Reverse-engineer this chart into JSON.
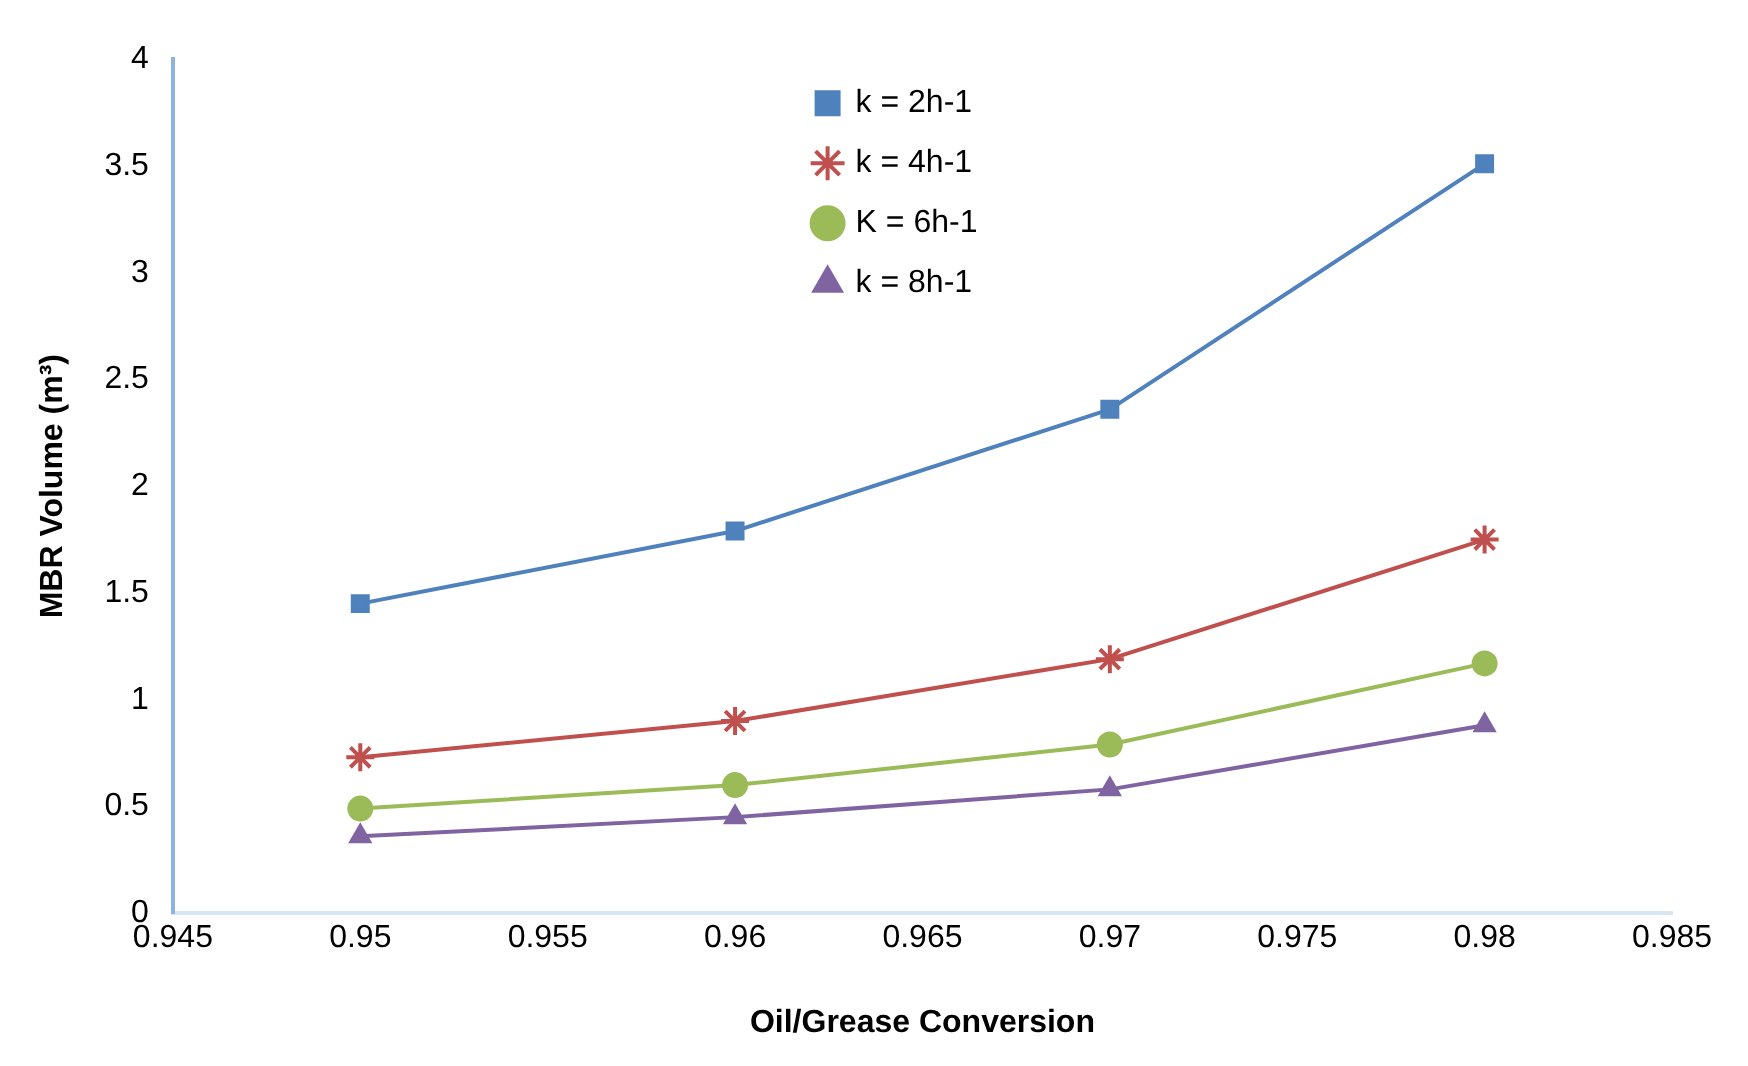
{
  "chart_data": {
    "type": "line",
    "xlabel": "Oil/Grease Conversion",
    "ylabel": "MBR Volume (m³)",
    "x": [
      0.95,
      0.96,
      0.97,
      0.98
    ],
    "series": [
      {
        "name": "k = 2h-1",
        "color": "#4f81bd",
        "marker": "square",
        "values": [
          1.45,
          1.79,
          2.36,
          3.51
        ]
      },
      {
        "name": "k = 4h-1",
        "color": "#c0504d",
        "marker": "cross",
        "values": [
          0.73,
          0.9,
          1.19,
          1.75
        ]
      },
      {
        "name": "K = 6h-1",
        "color": "#9bbb59",
        "marker": "circle",
        "values": [
          0.49,
          0.6,
          0.79,
          1.17
        ]
      },
      {
        "name": "k = 8h-1",
        "color": "#8064a2",
        "marker": "triangle",
        "values": [
          0.36,
          0.45,
          0.58,
          0.88
        ]
      }
    ],
    "xlim": [
      0.945,
      0.985
    ],
    "xticks": [
      0.945,
      0.95,
      0.955,
      0.96,
      0.965,
      0.97,
      0.975,
      0.98,
      0.985
    ],
    "ylim": [
      0,
      4
    ],
    "yticks": [
      0,
      0.5,
      1,
      1.5,
      2,
      2.5,
      3,
      3.5,
      4
    ],
    "grid": false,
    "legend": "top",
    "line_style": "solid"
  }
}
